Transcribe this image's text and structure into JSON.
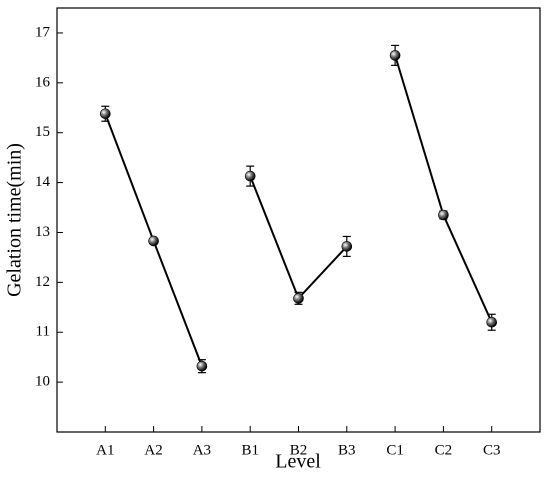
{
  "chart_data": {
    "type": "line",
    "x_label": "Level",
    "y_label": "Gelation time(min)",
    "categories": [
      "A1",
      "A2",
      "A3",
      "B1",
      "B2",
      "B3",
      "C1",
      "C2",
      "C3"
    ],
    "series": [
      {
        "color": "#000000",
        "values": [
          15.38,
          12.83,
          10.32,
          null,
          null,
          null,
          null,
          null,
          null
        ],
        "errors": [
          0.15,
          0.05,
          0.13,
          null,
          null,
          null,
          null,
          null,
          null
        ]
      },
      {
        "color": "#000000",
        "values": [
          null,
          null,
          null,
          14.13,
          11.68,
          12.72,
          null,
          null,
          null
        ],
        "errors": [
          null,
          null,
          null,
          0.2,
          0.12,
          0.2,
          null,
          null,
          null
        ]
      },
      {
        "color": "#000000",
        "values": [
          null,
          null,
          null,
          null,
          null,
          null,
          16.55,
          13.35,
          11.2
        ],
        "errors": [
          null,
          null,
          null,
          null,
          null,
          null,
          0.2,
          0.08,
          0.16
        ]
      }
    ],
    "ylim": [
      9,
      17.5
    ],
    "yticks": [
      10,
      11,
      12,
      13,
      14,
      15,
      16,
      17
    ],
    "grid": false
  }
}
